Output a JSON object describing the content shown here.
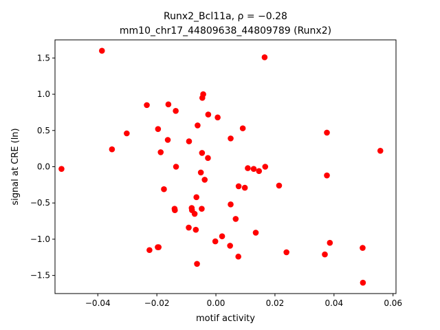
{
  "chart_data": {
    "type": "scatter",
    "title_line1": "Runx2_Bcl11a, ρ = −0.28",
    "title_line2": "mm10_chr17_44809638_44809789 (Runx2)",
    "xlabel": "motif activity",
    "ylabel": "signal at CRE (ln)",
    "xlim": [
      -0.0545,
      0.061
    ],
    "ylim": [
      -1.75,
      1.75
    ],
    "xticks": [
      -0.04,
      -0.02,
      0.0,
      0.02,
      0.04,
      0.06
    ],
    "xtick_labels": [
      "−0.04",
      "−0.02",
      "0.00",
      "0.02",
      "0.04",
      "0.06"
    ],
    "yticks": [
      -1.5,
      -1.0,
      -0.5,
      0.0,
      0.5,
      1.0,
      1.5
    ],
    "ytick_labels": [
      "−1.5",
      "−1.0",
      "−0.5",
      "0.0",
      "0.5",
      "1.0",
      "1.5"
    ],
    "grid": false,
    "marker_color": "#ff0000",
    "series": [
      {
        "points": [
          [
            -0.0386,
            1.6
          ],
          [
            0.0165,
            1.51
          ],
          [
            -0.0043,
            1.0
          ],
          [
            -0.0046,
            0.95
          ],
          [
            -0.0234,
            0.85
          ],
          [
            -0.0161,
            0.86
          ],
          [
            -0.0136,
            0.77
          ],
          [
            -0.0026,
            0.72
          ],
          [
            0.0006,
            0.68
          ],
          [
            -0.0062,
            0.57
          ],
          [
            0.0091,
            0.53
          ],
          [
            -0.0302,
            0.46
          ],
          [
            -0.0196,
            0.52
          ],
          [
            0.0376,
            0.47
          ],
          [
            -0.0163,
            0.37
          ],
          [
            -0.0091,
            0.35
          ],
          [
            0.005,
            0.39
          ],
          [
            -0.0352,
            0.24
          ],
          [
            -0.0187,
            0.2
          ],
          [
            -0.0047,
            0.19
          ],
          [
            -0.0027,
            0.12
          ],
          [
            0.0557,
            0.22
          ],
          [
            -0.0523,
            -0.03
          ],
          [
            -0.0135,
            0.0
          ],
          [
            0.0108,
            -0.02
          ],
          [
            0.0128,
            -0.03
          ],
          [
            0.0146,
            -0.06
          ],
          [
            0.0167,
            0.0
          ],
          [
            0.0376,
            -0.12
          ],
          [
            -0.0051,
            -0.08
          ],
          [
            -0.0038,
            -0.18
          ],
          [
            0.0077,
            -0.27
          ],
          [
            0.0098,
            -0.29
          ],
          [
            0.0214,
            -0.26
          ],
          [
            -0.0176,
            -0.31
          ],
          [
            -0.0066,
            -0.42
          ],
          [
            0.005,
            -0.52
          ],
          [
            -0.0082,
            -0.57
          ],
          [
            -0.014,
            -0.58
          ],
          [
            -0.0139,
            -0.6
          ],
          [
            -0.0048,
            -0.58
          ],
          [
            -0.0072,
            -0.65
          ],
          [
            -0.0081,
            -0.6
          ],
          [
            0.0067,
            -0.72
          ],
          [
            -0.0092,
            -0.84
          ],
          [
            -0.0068,
            -0.87
          ],
          [
            0.0135,
            -0.91
          ],
          [
            0.0021,
            -0.96
          ],
          [
            -0.0002,
            -1.03
          ],
          [
            0.0048,
            -1.09
          ],
          [
            0.0386,
            -1.05
          ],
          [
            0.0497,
            -1.12
          ],
          [
            -0.0225,
            -1.15
          ],
          [
            -0.0194,
            -1.11
          ],
          [
            -0.0197,
            -1.11
          ],
          [
            0.0239,
            -1.18
          ],
          [
            0.0369,
            -1.21
          ],
          [
            0.0076,
            -1.24
          ],
          [
            -0.0064,
            -1.34
          ],
          [
            0.0498,
            -1.6
          ]
        ]
      }
    ]
  }
}
